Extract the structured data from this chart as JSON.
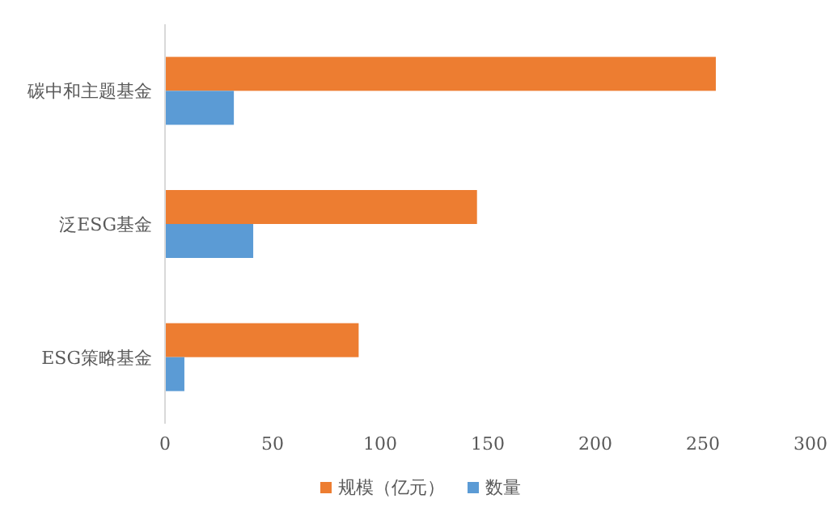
{
  "chart_data": {
    "type": "bar",
    "orientation": "horizontal",
    "categories": [
      "碳中和主题基金",
      "泛ESG基金",
      "ESG策略基金"
    ],
    "series": [
      {
        "name": "规模（亿元）",
        "color": "#ed7d31",
        "values": [
          256,
          145,
          90
        ]
      },
      {
        "name": "数量",
        "color": "#5b9bd5",
        "values": [
          32,
          41,
          9
        ]
      }
    ],
    "xlim": [
      0,
      300
    ],
    "xticks": [
      0,
      50,
      100,
      150,
      200,
      250,
      300
    ],
    "grid": false,
    "legend": "bottom"
  }
}
